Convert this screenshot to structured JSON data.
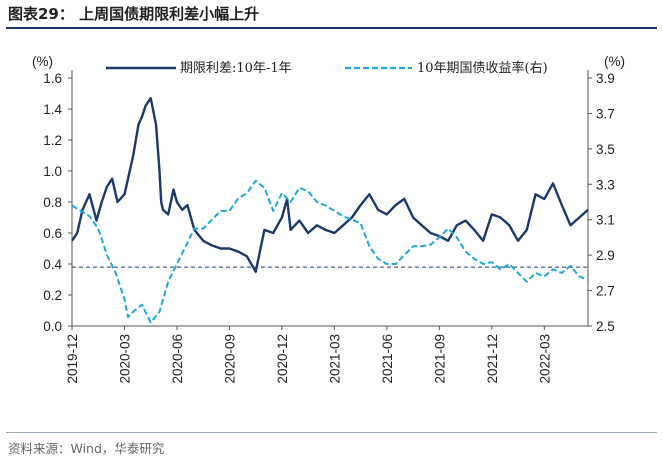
{
  "header": {
    "title": "图表29：  上周国债期限利差小幅上升"
  },
  "footer": {
    "source": "资料来源：Wind，华泰研究"
  },
  "chart_data": {
    "type": "line",
    "title": "图表29：  上周国债期限利差小幅上升",
    "left_axis": {
      "unit": "(%)",
      "range": [
        0.0,
        1.6
      ],
      "ticks": [
        "0.0",
        "0.2",
        "0.4",
        "0.6",
        "0.8",
        "1.0",
        "1.2",
        "1.4",
        "1.6"
      ]
    },
    "right_axis": {
      "unit": "(%)",
      "range": [
        2.5,
        3.9
      ],
      "ticks": [
        "2.5",
        "2.7",
        "2.9",
        "3.1",
        "3.3",
        "3.5",
        "3.7",
        "3.9"
      ]
    },
    "x_axis": {
      "range": [
        "2019-12",
        "2022-05"
      ],
      "ticks": [
        "2019-12",
        "2020-03",
        "2020-06",
        "2020-09",
        "2020-12",
        "2021-03",
        "2021-06",
        "2021-09",
        "2021-12",
        "2022-03"
      ]
    },
    "legend": {
      "position": "top",
      "entries": [
        "期限利差:10年-1年",
        "10年期国债收益率(右)"
      ]
    },
    "reference_line": {
      "axis": "left",
      "value": 0.38,
      "style": "dashed"
    },
    "series": [
      {
        "name": "期限利差:10年-1年",
        "axis": "left",
        "color": "#1a3a6e",
        "style": "solid",
        "x": [
          0,
          0.3,
          0.6,
          1,
          1.4,
          1.7,
          2,
          2.3,
          2.6,
          3,
          3.2,
          3.5,
          3.8,
          4,
          4.2,
          4.5,
          4.8,
          5,
          5.1,
          5.2,
          5.5,
          5.8,
          6,
          6.3,
          6.6,
          7,
          7.5,
          8,
          8.5,
          9,
          9.5,
          10,
          10.5,
          11,
          11.5,
          12,
          12.3,
          12.5,
          13,
          13.5,
          14,
          14.5,
          15,
          15.5,
          16,
          16.5,
          17,
          17.5,
          18,
          18.5,
          19,
          19.5,
          20,
          20.5,
          21,
          21.5,
          22,
          22.5,
          23,
          23.5,
          24,
          24.5,
          25,
          25.5,
          26,
          26.5,
          27,
          27.5,
          28,
          28.5,
          29,
          29.5
        ],
        "values": [
          0.55,
          0.6,
          0.75,
          0.85,
          0.68,
          0.8,
          0.9,
          0.95,
          0.8,
          0.85,
          0.95,
          1.1,
          1.3,
          1.35,
          1.42,
          1.47,
          1.3,
          1.0,
          0.8,
          0.75,
          0.72,
          0.88,
          0.8,
          0.75,
          0.78,
          0.62,
          0.55,
          0.52,
          0.5,
          0.5,
          0.48,
          0.45,
          0.35,
          0.62,
          0.6,
          0.7,
          0.82,
          0.62,
          0.68,
          0.6,
          0.65,
          0.62,
          0.6,
          0.65,
          0.7,
          0.78,
          0.85,
          0.75,
          0.72,
          0.78,
          0.82,
          0.7,
          0.65,
          0.6,
          0.58,
          0.55,
          0.65,
          0.68,
          0.62,
          0.55,
          0.72,
          0.7,
          0.65,
          0.55,
          0.62,
          0.85,
          0.82,
          0.92,
          0.78,
          0.65,
          0.7,
          0.75
        ]
      },
      {
        "name": "10年期国债收益率(右)",
        "axis": "right",
        "color": "#1ea8dc",
        "style": "dashed",
        "x": [
          0,
          0.5,
          1,
          1.5,
          2,
          2.5,
          3,
          3.2,
          3.5,
          4,
          4.5,
          5,
          5.5,
          6,
          6.5,
          7,
          7.5,
          8,
          8.5,
          9,
          9.5,
          10,
          10.5,
          11,
          11.5,
          12,
          12.5,
          13,
          13.5,
          14,
          14.5,
          15,
          15.5,
          16,
          16.5,
          17,
          17.5,
          18,
          18.5,
          19,
          19.5,
          20,
          20.5,
          21,
          21.5,
          22,
          22.5,
          23,
          23.5,
          24,
          24.5,
          25,
          25.5,
          26,
          26.5,
          27,
          27.5,
          28,
          28.5,
          29,
          29.5
        ],
        "values": [
          3.18,
          3.15,
          3.12,
          3.05,
          2.9,
          2.8,
          2.65,
          2.55,
          2.58,
          2.62,
          2.52,
          2.58,
          2.75,
          2.85,
          2.95,
          3.05,
          3.05,
          3.1,
          3.15,
          3.15,
          3.22,
          3.25,
          3.32,
          3.28,
          3.15,
          3.25,
          3.2,
          3.28,
          3.26,
          3.2,
          3.18,
          3.15,
          3.12,
          3.1,
          3.08,
          2.95,
          2.88,
          2.85,
          2.85,
          2.9,
          2.95,
          2.95,
          2.96,
          3.0,
          3.05,
          3.0,
          2.92,
          2.88,
          2.85,
          2.86,
          2.82,
          2.85,
          2.8,
          2.75,
          2.8,
          2.78,
          2.82,
          2.8,
          2.84,
          2.78,
          2.76
        ]
      }
    ]
  }
}
